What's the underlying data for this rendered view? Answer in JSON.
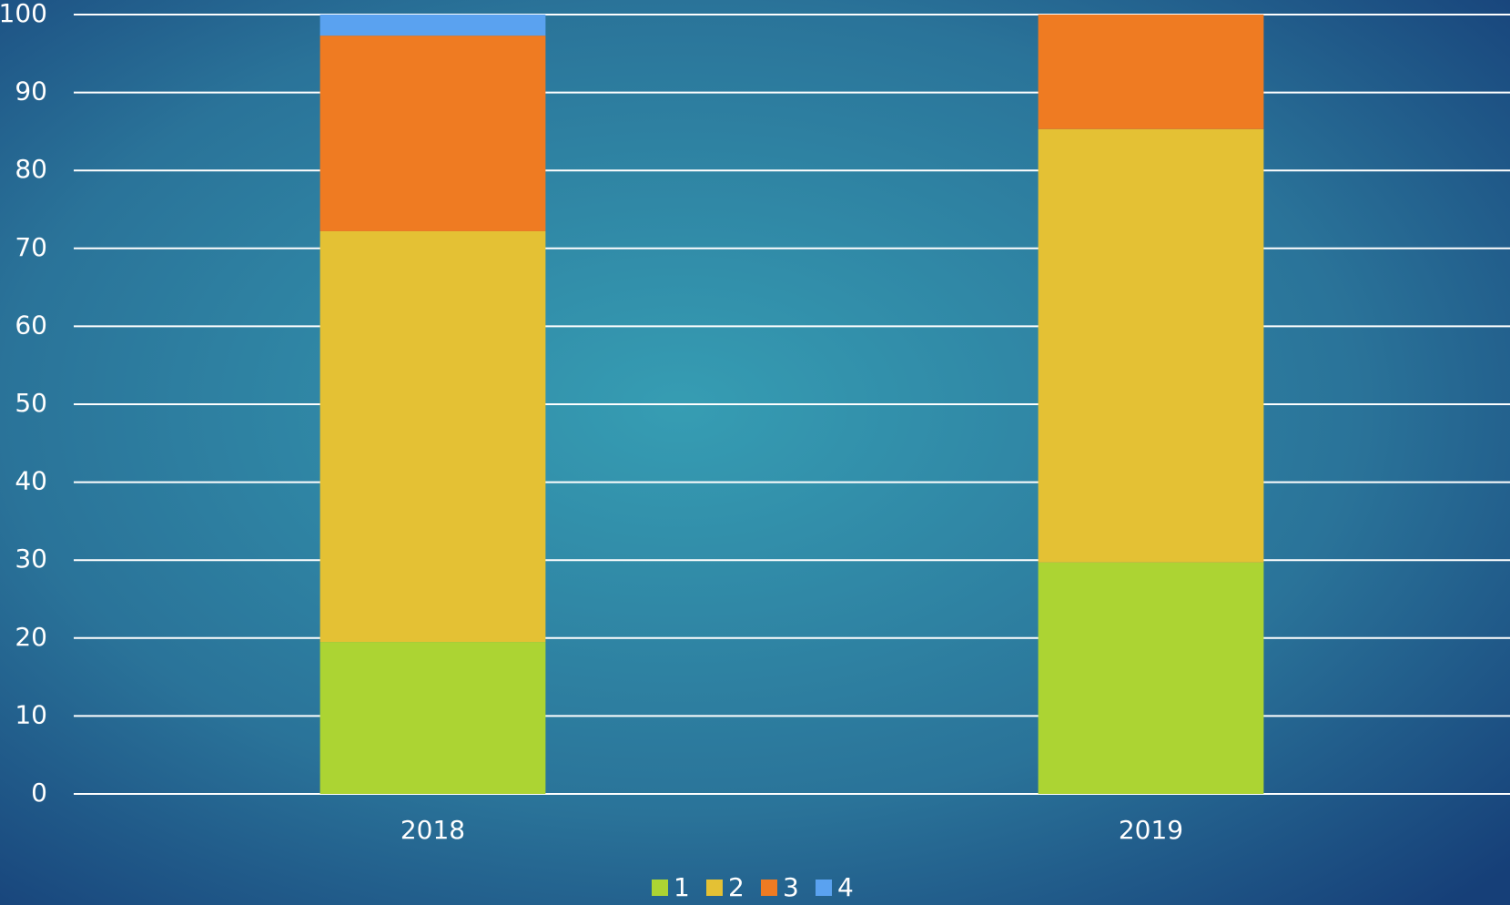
{
  "chart_data": {
    "type": "stacked_bar",
    "categories": [
      "2018",
      "2019"
    ],
    "series": [
      {
        "name": "1",
        "color": "#acd433",
        "values": [
          19.5,
          29.7
        ]
      },
      {
        "name": "2",
        "color": "#e4c134",
        "values": [
          52.7,
          55.6
        ]
      },
      {
        "name": "3",
        "color": "#ef7b22",
        "values": [
          25.1,
          14.7
        ]
      },
      {
        "name": "4",
        "color": "#5aa2f0",
        "values": [
          2.7,
          0
        ]
      }
    ],
    "ylim": [
      0,
      100
    ],
    "yticks": [
      0,
      10,
      20,
      30,
      40,
      50,
      60,
      70,
      80,
      90,
      100
    ],
    "grid": true,
    "legend": "bottom"
  }
}
